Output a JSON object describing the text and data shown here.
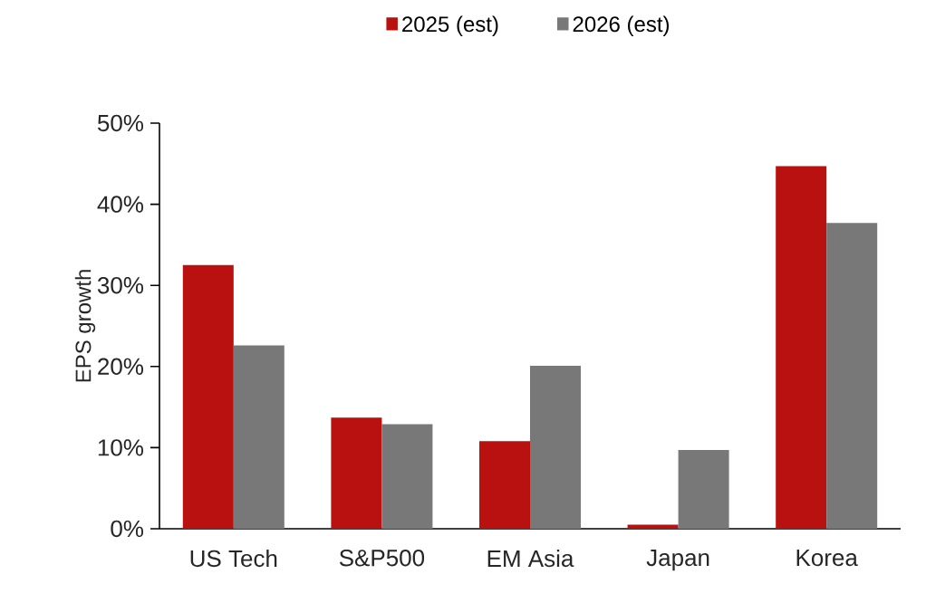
{
  "chart_data": {
    "type": "bar",
    "ylabel": "EPS growth",
    "categories": [
      "US Tech",
      "S&P500",
      "EM Asia",
      "Japan",
      "Korea"
    ],
    "series": [
      {
        "name": "2025 (est)",
        "color": "#b91010",
        "values": [
          32.5,
          13.7,
          10.8,
          0.5,
          44.7
        ]
      },
      {
        "name": "2026 (est)",
        "color": "#787878",
        "values": [
          22.6,
          12.9,
          20.1,
          9.7,
          37.7
        ]
      }
    ],
    "ylim": [
      0,
      50
    ],
    "yticks": [
      {
        "value": 0,
        "label": "0%"
      },
      {
        "value": 10,
        "label": "10%"
      },
      {
        "value": 20,
        "label": "20%"
      },
      {
        "value": 30,
        "label": "30%"
      },
      {
        "value": 40,
        "label": "40%"
      },
      {
        "value": 50,
        "label": "50%"
      }
    ],
    "grid": false,
    "legend": "top"
  }
}
